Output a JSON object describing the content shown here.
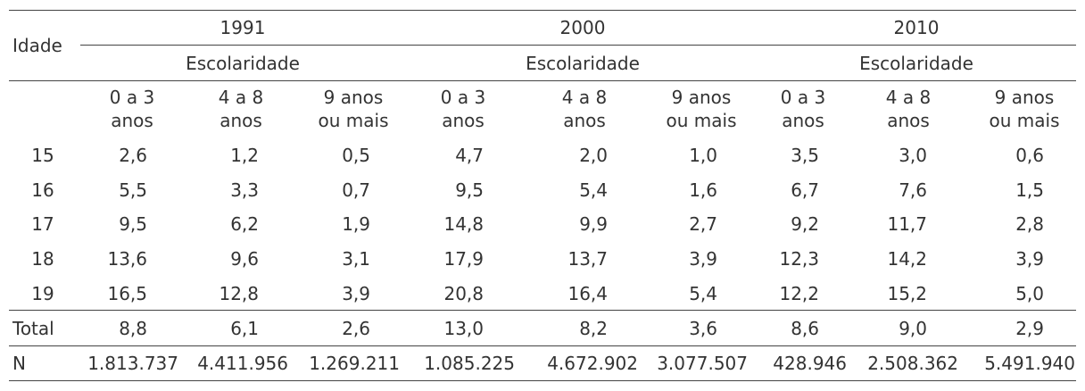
{
  "table": {
    "idade_label": "Idade",
    "years": [
      "1991",
      "2000",
      "2010"
    ],
    "escolaridade_label": "Escolaridade",
    "subheaders": [
      [
        "0 a 3",
        "anos"
      ],
      [
        "4 a 8",
        "anos"
      ],
      [
        "9 anos",
        "ou mais"
      ],
      [
        "0 a 3",
        "anos"
      ],
      [
        "4 a 8",
        "anos"
      ],
      [
        "9 anos",
        "ou mais"
      ],
      [
        "0 a 3",
        "anos"
      ],
      [
        "4 a 8",
        "anos"
      ],
      [
        "9 anos",
        "ou mais"
      ]
    ],
    "rows": [
      {
        "label": "15",
        "values": [
          "2,6",
          "1,2",
          "0,5",
          "4,7",
          "2,0",
          "1,0",
          "3,5",
          "3,0",
          "0,6"
        ]
      },
      {
        "label": "16",
        "values": [
          "5,5",
          "3,3",
          "0,7",
          "9,5",
          "5,4",
          "1,6",
          "6,7",
          "7,6",
          "1,5"
        ]
      },
      {
        "label": "17",
        "values": [
          "9,5",
          "6,2",
          "1,9",
          "14,8",
          "9,9",
          "2,7",
          "9,2",
          "11,7",
          "2,8"
        ]
      },
      {
        "label": "18",
        "values": [
          "13,6",
          "9,6",
          "3,1",
          "17,9",
          "13,7",
          "3,9",
          "12,3",
          "14,2",
          "3,9"
        ]
      },
      {
        "label": "19",
        "values": [
          "16,5",
          "12,8",
          "3,9",
          "20,8",
          "16,4",
          "5,4",
          "12,2",
          "15,2",
          "5,0"
        ]
      }
    ],
    "total_row": {
      "label": "Total",
      "values": [
        "8,8",
        "6,1",
        "2,6",
        "13,0",
        "8,2",
        "3,6",
        "8,6",
        "9,0",
        "2,9"
      ]
    },
    "n_row": {
      "label": "N",
      "values": [
        "1.813.737",
        "4.411.956",
        "1.269.211",
        "1.085.225",
        "4.672.902",
        "3.077.507",
        "428.946",
        "2.508.362",
        "5.491.940"
      ]
    }
  }
}
